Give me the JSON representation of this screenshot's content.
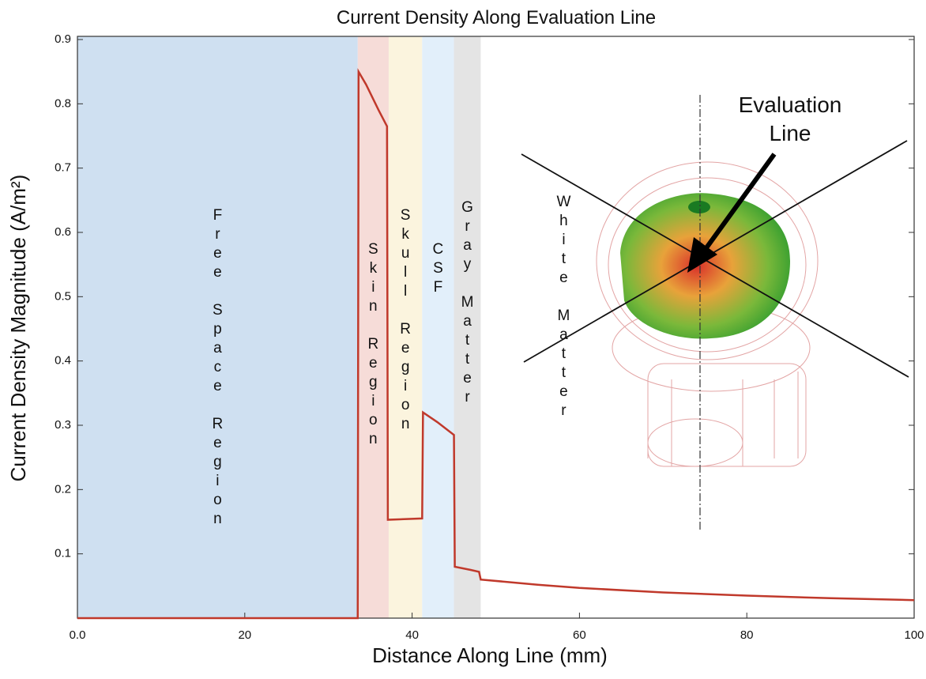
{
  "chart_data": {
    "type": "line",
    "title": "Current Density Along Evaluation Line",
    "xlabel": "Distance Along Line (mm)",
    "ylabel": "Current Density Magnitude (A/m²)",
    "annotation": "Evaluation Line",
    "xlim": [
      0,
      100
    ],
    "ylim": [
      0,
      0.9
    ],
    "xticks": [
      {
        "value": 0,
        "label": "0.0"
      },
      20,
      40,
      60,
      80,
      100
    ],
    "yticks": [
      0.1,
      0.2,
      0.3,
      0.4,
      0.5,
      0.6,
      0.7,
      0.8,
      0.9
    ],
    "regions": [
      {
        "label": "Free Space Region",
        "start": 0,
        "end": 33.5,
        "color": "#cfe0f1"
      },
      {
        "label": "Skin Region",
        "start": 33.5,
        "end": 37.2,
        "color": "#f6dcd8"
      },
      {
        "label": "Skull Region",
        "start": 37.2,
        "end": 41.2,
        "color": "#fbf4de"
      },
      {
        "label": "CSF",
        "start": 41.2,
        "end": 45.0,
        "color": "#e2effa"
      },
      {
        "label": "Gray Matter",
        "start": 45.0,
        "end": 48.2,
        "color": "#e4e4e4"
      },
      {
        "label": "White Matter",
        "start": 48.2,
        "end": 100,
        "color": "#ffffff"
      }
    ],
    "series": [
      {
        "color": "#c0392b",
        "x": [
          0,
          33.5,
          33.6,
          34.5,
          36.0,
          37.0,
          37.1,
          41.2,
          41.3,
          43.0,
          45.0,
          45.1,
          47.0,
          48.0,
          48.2,
          55,
          60,
          70,
          80,
          90,
          100
        ],
        "values": [
          0,
          0,
          0.85,
          0.83,
          0.79,
          0.765,
          0.153,
          0.155,
          0.32,
          0.305,
          0.285,
          0.08,
          0.075,
          0.072,
          0.06,
          0.052,
          0.047,
          0.04,
          0.035,
          0.031,
          0.028
        ]
      }
    ]
  }
}
